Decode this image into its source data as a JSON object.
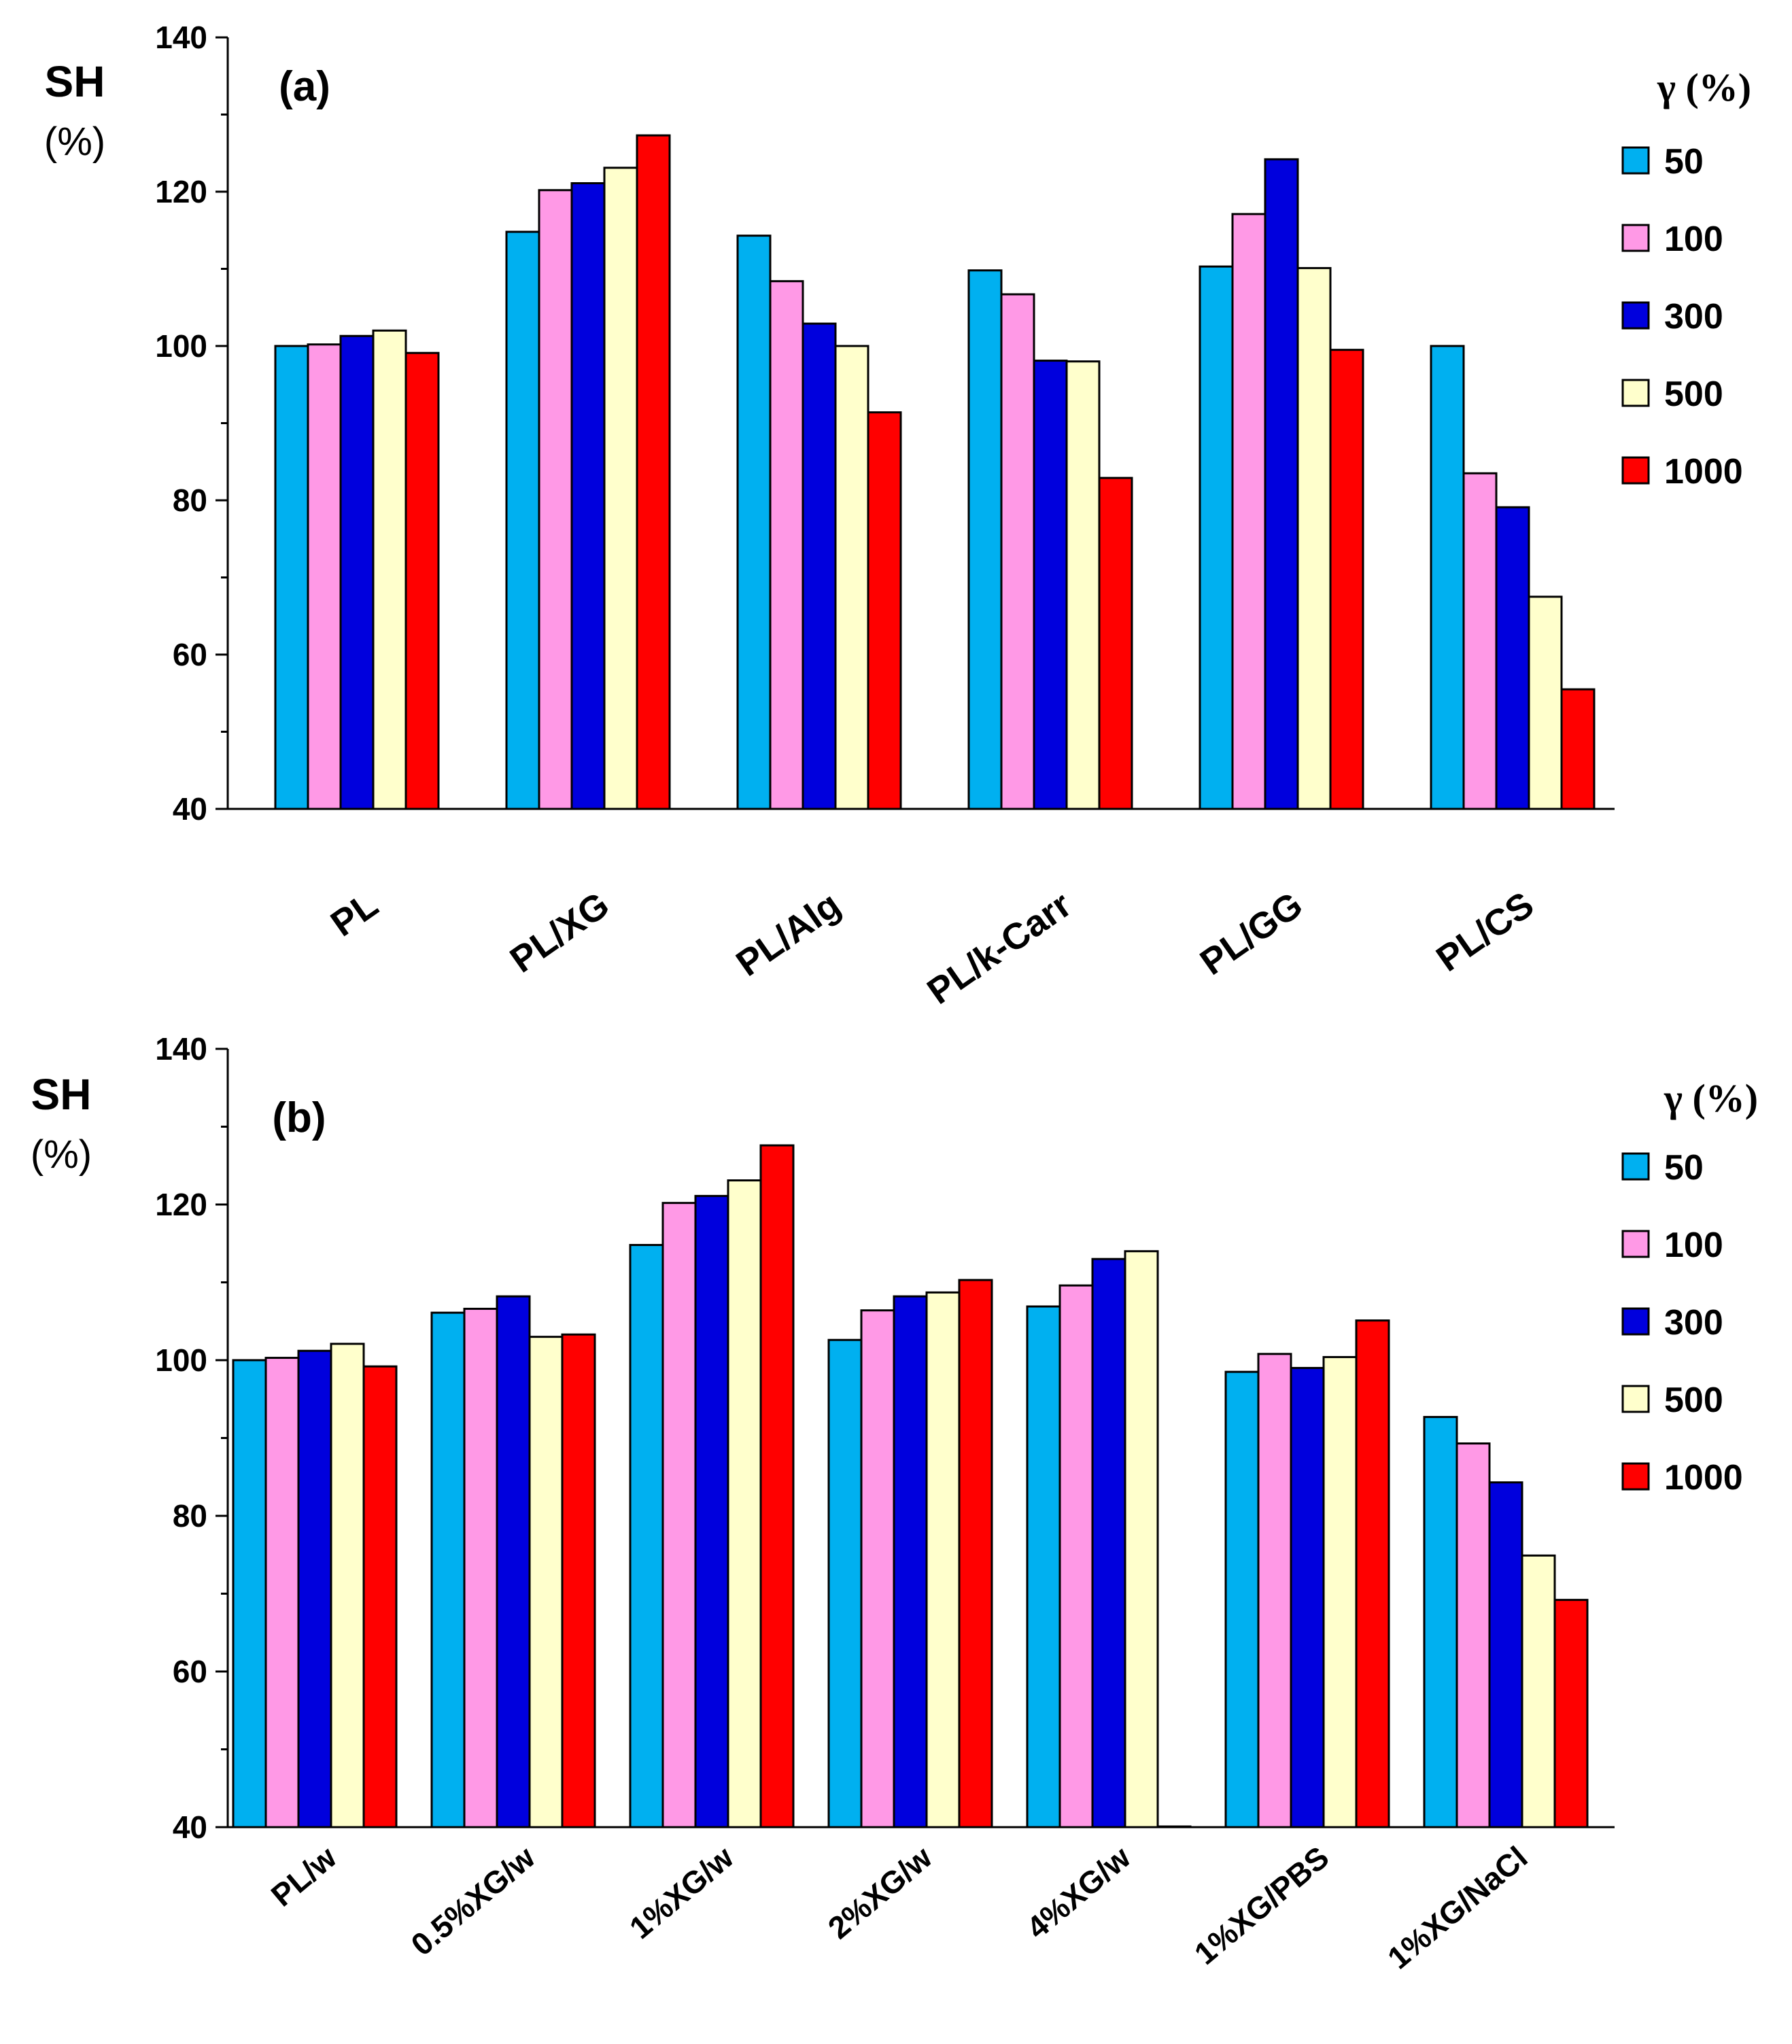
{
  "colors": {
    "50": "#00B0F0",
    "100": "#FF99E6",
    "300": "#0000DD",
    "500": "#FFFFCC",
    "1000": "#FF0000"
  },
  "chart_data": [
    {
      "type": "bar",
      "panel_label": "(a)",
      "ylabel": "SH",
      "ylabel_unit": "(%)",
      "ylim": [
        40,
        140
      ],
      "yticks": [
        40,
        60,
        80,
        100,
        120,
        140
      ],
      "legend_title": "γ  (%)",
      "legend_position": "right",
      "categories": [
        "PL",
        "PL/XG",
        "PL/Alg",
        "PL/k-Carr",
        "PL/GG",
        "PL/CS"
      ],
      "series": [
        {
          "name": "50",
          "values": [
            100,
            114.8,
            114.3,
            109.8,
            110.3,
            100
          ]
        },
        {
          "name": "100",
          "values": [
            100.2,
            120.2,
            108.4,
            106.7,
            117.1,
            83.5
          ]
        },
        {
          "name": "300",
          "values": [
            101.3,
            121.1,
            102.9,
            98.1,
            124.2,
            79.1
          ]
        },
        {
          "name": "500",
          "values": [
            102,
            123.1,
            100,
            98,
            110.1,
            67.5
          ]
        },
        {
          "name": "1000",
          "values": [
            99.1,
            127.3,
            91.4,
            82.9,
            99.5,
            55.5
          ]
        }
      ]
    },
    {
      "type": "bar",
      "panel_label": "(b)",
      "ylabel": "SH",
      "ylabel_unit": "(%)",
      "ylim": [
        40,
        140
      ],
      "yticks": [
        40,
        60,
        80,
        100,
        120,
        140
      ],
      "legend_title": "γ  (%)",
      "legend_position": "right",
      "categories": [
        "PL/w",
        "0.5%XG/w",
        "1%XG/w",
        "2%XG/w",
        "4%XG/w",
        "1%XG/PBS",
        "1%XG/NaCl"
      ],
      "series": [
        {
          "name": "50",
          "values": [
            100,
            106.1,
            114.8,
            102.6,
            106.9,
            98.5,
            92.7
          ]
        },
        {
          "name": "100",
          "values": [
            100.3,
            106.6,
            120.2,
            106.4,
            109.6,
            100.8,
            89.3
          ]
        },
        {
          "name": "300",
          "values": [
            101.2,
            108.2,
            121.1,
            108.2,
            113,
            99,
            84.3
          ]
        },
        {
          "name": "500",
          "values": [
            102.1,
            103,
            123.1,
            108.7,
            114,
            100.4,
            74.9
          ]
        },
        {
          "name": "1000",
          "values": [
            99.2,
            103.3,
            127.6,
            110.3,
            40,
            105.1,
            69.2
          ]
        }
      ]
    }
  ]
}
